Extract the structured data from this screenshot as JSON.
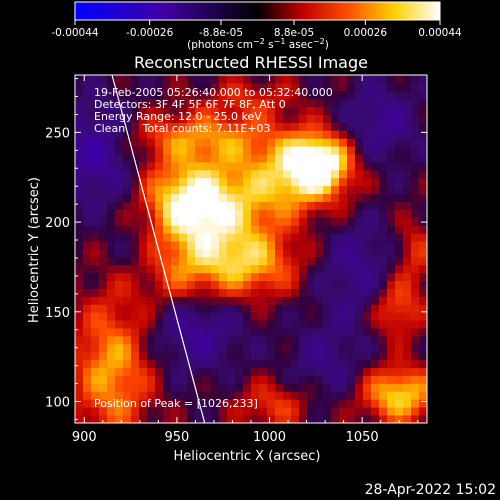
{
  "chart_data": {
    "type": "heatmap",
    "title": "Reconstructed RHESSI Image",
    "xlabel": "Heliocentric X (arcsec)",
    "ylabel": "Heliocentric Y (arcsec)",
    "xlim": [
      895,
      1085
    ],
    "ylim": [
      88,
      282
    ],
    "x_ticks": [
      900,
      950,
      1000,
      1050
    ],
    "y_ticks": [
      100,
      150,
      200,
      250
    ],
    "colorbar": {
      "range": [
        -0.00044,
        0.00044
      ],
      "tick_values": [
        -0.00044,
        -0.00026,
        -8.8e-05,
        8.8e-05,
        0.00026,
        0.00044
      ],
      "tick_labels": [
        "-0.00044",
        "-0.00026",
        "-8.8e-05",
        "8.8e-05",
        "0.00026",
        "0.00044"
      ],
      "colors": [
        "#0000ff",
        "#000000",
        "#ff0000",
        "#ffff00",
        "#ffffff"
      ]
    },
    "info": [
      "19-Feb-2005 05:26:40.000 to 05:32:40.000",
      "Detectors: 3F 4F 5F 6F 7F 8F, Att 0",
      "Energy Range: 12.0 - 25.0 keV",
      "Clean     Total counts: 7.11E+03"
    ],
    "peak_text": "Position of Peak = [1026,233]",
    "peak": [
      1026,
      233
    ],
    "components": [
      {
        "x": 1026,
        "y": 233,
        "peak": 0.00044,
        "sigma_x": 12,
        "sigma_y": 11
      },
      {
        "x": 1010,
        "y": 224,
        "peak": 0.00026,
        "sigma_x": 22,
        "sigma_y": 16
      },
      {
        "x": 955,
        "y": 212,
        "peak": 0.00035,
        "sigma_x": 16,
        "sigma_y": 16
      },
      {
        "x": 975,
        "y": 198,
        "peak": 0.00025,
        "sigma_x": 20,
        "sigma_y": 22
      },
      {
        "x": 993,
        "y": 176,
        "peak": 0.0002,
        "sigma_x": 18,
        "sigma_y": 12
      },
      {
        "x": 948,
        "y": 172,
        "peak": 0.00018,
        "sigma_x": 20,
        "sigma_y": 14
      },
      {
        "x": 963,
        "y": 248,
        "peak": 0.00022,
        "sigma_x": 30,
        "sigma_y": 10
      },
      {
        "x": 915,
        "y": 118,
        "peak": 0.00028,
        "sigma_x": 15,
        "sigma_y": 28
      },
      {
        "x": 1070,
        "y": 104,
        "peak": 0.00034,
        "sigma_x": 14,
        "sigma_y": 11
      },
      {
        "x": 1068,
        "y": 152,
        "peak": 0.00022,
        "sigma_x": 10,
        "sigma_y": 12
      },
      {
        "x": 1002,
        "y": 98,
        "peak": 0.00016,
        "sigma_x": 14,
        "sigma_y": 10
      },
      {
        "x": 1078,
        "y": 183,
        "peak": 0.00015,
        "sigma_x": 8,
        "sigma_y": 14
      },
      {
        "x": 990,
        "y": 270,
        "peak": 0.00012,
        "sigma_x": 18,
        "sigma_y": 8
      },
      {
        "x": 907,
        "y": 240,
        "peak": -0.00022,
        "sigma_x": 14,
        "sigma_y": 20
      },
      {
        "x": 960,
        "y": 140,
        "peak": -0.00018,
        "sigma_x": 18,
        "sigma_y": 16
      },
      {
        "x": 1048,
        "y": 172,
        "peak": -0.00015,
        "sigma_x": 16,
        "sigma_y": 22
      },
      {
        "x": 1060,
        "y": 255,
        "peak": -0.00016,
        "sigma_x": 14,
        "sigma_y": 16
      },
      {
        "x": 1030,
        "y": 122,
        "peak": -0.00012,
        "sigma_x": 14,
        "sigma_y": 14
      },
      {
        "x": 930,
        "y": 180,
        "peak": -0.0001,
        "sigma_x": 12,
        "sigma_y": 14
      }
    ],
    "limb_line": {
      "x": [
        915,
        965
      ],
      "y": [
        282,
        88
      ]
    }
  },
  "footer": {
    "date": "28-Apr-2022 15:02"
  }
}
